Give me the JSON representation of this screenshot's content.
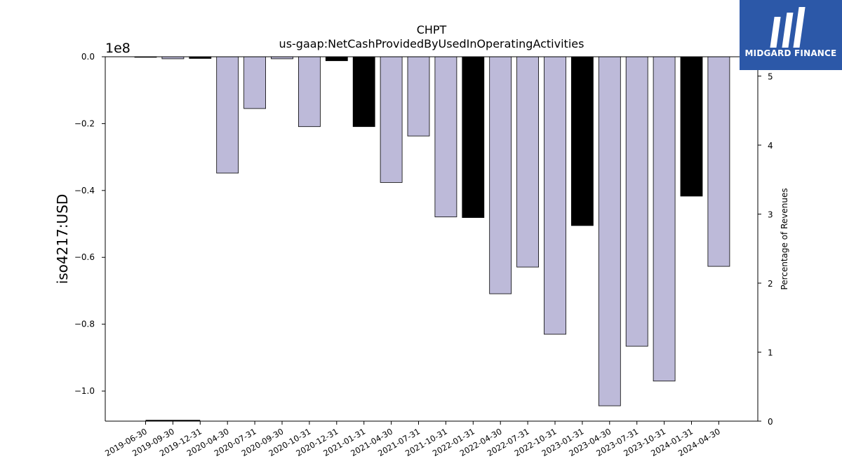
{
  "chart_data": {
    "type": "bar",
    "title": "CHPT",
    "subtitle": "us-gaap:NetCashProvidedByUsedInOperatingActivities",
    "ylabel": "iso4217:USD",
    "y_offset_label": "1e8",
    "y2label": "Percentage of Revenues",
    "ylim": [
      -1.09,
      0.0
    ],
    "y2lim": [
      0,
      5.28
    ],
    "yticks": [
      0.0,
      -0.2,
      -0.4,
      -0.6,
      -0.8,
      -1.0
    ],
    "ytick_labels": [
      "0.0",
      "−0.2",
      "−0.4",
      "−0.6",
      "−0.8",
      "−1.0"
    ],
    "y2ticks": [
      0,
      1,
      2,
      3,
      4,
      5
    ],
    "y2tick_labels": [
      "0",
      "1",
      "2",
      "3",
      "4",
      "5"
    ],
    "grid": false,
    "categories": [
      "2019-06-30",
      "2019-09-30",
      "2019-12-31",
      "2020-04-30",
      "2020-07-31",
      "2020-09-30",
      "2020-10-31",
      "2020-12-31",
      "2021-01-31",
      "2021-04-30",
      "2021-07-31",
      "2021-10-31",
      "2022-01-31",
      "2022-04-30",
      "2022-07-31",
      "2022-10-31",
      "2023-01-31",
      "2023-04-30",
      "2023-07-31",
      "2023-10-31",
      "2024-01-31",
      "2024-04-30"
    ],
    "values": [
      0.0,
      -0.006,
      -0.005,
      -0.348,
      -0.155,
      -0.006,
      -0.209,
      -0.012,
      -0.209,
      -0.376,
      -0.237,
      -0.479,
      -0.481,
      -0.709,
      -0.629,
      -0.83,
      -0.505,
      -1.044,
      -0.866,
      -0.97,
      -0.417,
      -0.627
    ],
    "annual": [
      false,
      false,
      true,
      false,
      false,
      false,
      false,
      true,
      true,
      false,
      false,
      false,
      true,
      false,
      false,
      false,
      true,
      false,
      false,
      false,
      true,
      false
    ],
    "colors": {
      "quarterly": "#bdbad9",
      "annual": "#000000",
      "edge": "#000000"
    },
    "series2": {
      "name": "",
      "values": [
        0.0,
        0.0,
        0.0,
        null,
        null,
        null,
        null,
        null,
        null,
        null,
        null,
        null,
        null,
        null,
        null,
        null,
        null,
        null,
        null,
        null,
        null,
        null
      ]
    }
  },
  "logo": {
    "text": "MIDGARD FINANCE",
    "color": "#2c58a8"
  }
}
